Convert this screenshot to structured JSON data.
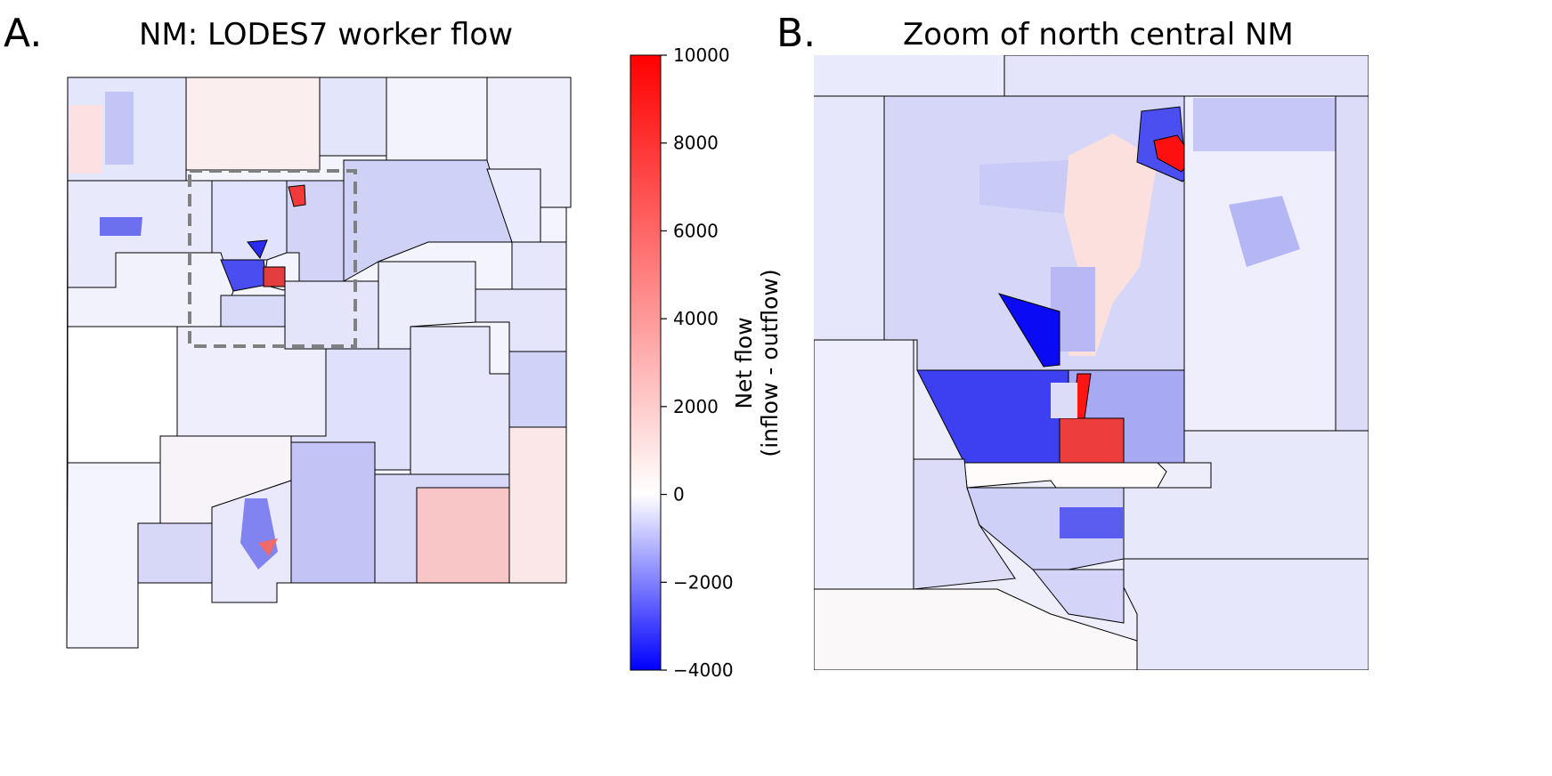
{
  "panel_a": {
    "letter": "A.",
    "title": "NM: LODES7 worker flow"
  },
  "panel_b": {
    "letter": "B.",
    "title": "Zoom of north central NM"
  },
  "colorbar": {
    "label_line1": "Net flow",
    "label_line2": "(inflow - outflow)",
    "ticks": [
      {
        "value": 10000,
        "label": "10000"
      },
      {
        "value": 8000,
        "label": "8000"
      },
      {
        "value": 6000,
        "label": "6000"
      },
      {
        "value": 4000,
        "label": "4000"
      },
      {
        "value": 2000,
        "label": "2000"
      },
      {
        "value": 0,
        "label": "0"
      },
      {
        "value": -2000,
        "label": "−2000"
      },
      {
        "value": -4000,
        "label": "−4000"
      }
    ],
    "vmin": -4000,
    "vcenter": 0,
    "vmax": 10000,
    "colors": {
      "min": "#0000ff",
      "center": "#ffffff",
      "max": "#ff0000"
    }
  }
}
